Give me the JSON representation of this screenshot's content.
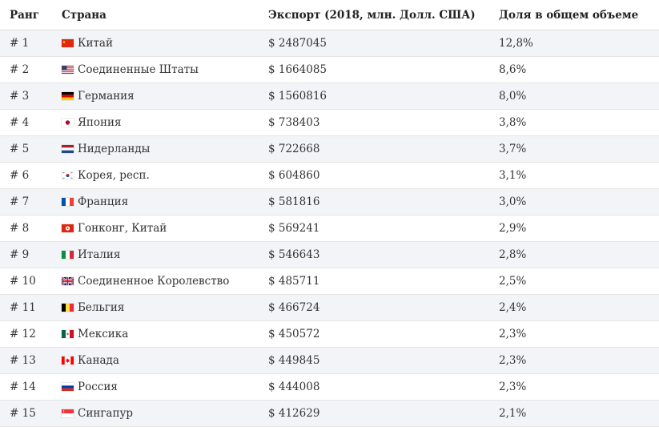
{
  "headers": {
    "rank": "Ранг",
    "country": "Страна",
    "export": "Экспорт (2018, млн. Долл. США)",
    "share": "Доля в общем объеме"
  },
  "rows": [
    {
      "rank": "# 1",
      "flag": "china-flag-icon",
      "country": "Китай",
      "export": "$ 2487045",
      "share": "12,8%"
    },
    {
      "rank": "# 2",
      "flag": "usa-flag-icon",
      "country": "Соединенные Штаты",
      "export": "$ 1664085",
      "share": "8,6%"
    },
    {
      "rank": "# 3",
      "flag": "germany-flag-icon",
      "country": "Германия",
      "export": "$ 1560816",
      "share": "8,0%"
    },
    {
      "rank": "# 4",
      "flag": "japan-flag-icon",
      "country": "Япония",
      "export": "$ 738403",
      "share": "3,8%"
    },
    {
      "rank": "# 5",
      "flag": "netherlands-flag-icon",
      "country": "Нидерланды",
      "export": "$ 722668",
      "share": "3,7%"
    },
    {
      "rank": "# 6",
      "flag": "korea-flag-icon",
      "country": "Корея, респ.",
      "export": "$ 604860",
      "share": "3,1%"
    },
    {
      "rank": "# 7",
      "flag": "france-flag-icon",
      "country": "Франция",
      "export": "$ 581816",
      "share": "3,0%"
    },
    {
      "rank": "# 8",
      "flag": "hongkong-flag-icon",
      "country": "Гонконг, Китай",
      "export": "$ 569241",
      "share": "2,9%"
    },
    {
      "rank": "# 9",
      "flag": "italy-flag-icon",
      "country": "Италия",
      "export": "$ 546643",
      "share": "2,8%"
    },
    {
      "rank": "# 10",
      "flag": "uk-flag-icon",
      "country": "Соединенное Королевство",
      "export": "$ 485711",
      "share": "2,5%"
    },
    {
      "rank": "# 11",
      "flag": "belgium-flag-icon",
      "country": "Бельгия",
      "export": "$ 466724",
      "share": "2,4%"
    },
    {
      "rank": "# 12",
      "flag": "mexico-flag-icon",
      "country": "Мексика",
      "export": "$ 450572",
      "share": "2,3%"
    },
    {
      "rank": "# 13",
      "flag": "canada-flag-icon",
      "country": "Канада",
      "export": "$ 449845",
      "share": "2,3%"
    },
    {
      "rank": "# 14",
      "flag": "russia-flag-icon",
      "country": "Россия",
      "export": "$ 444008",
      "share": "2,3%"
    },
    {
      "rank": "# 15",
      "flag": "singapore-flag-icon",
      "country": "Сингапур",
      "export": "$ 412629",
      "share": "2,1%"
    }
  ]
}
